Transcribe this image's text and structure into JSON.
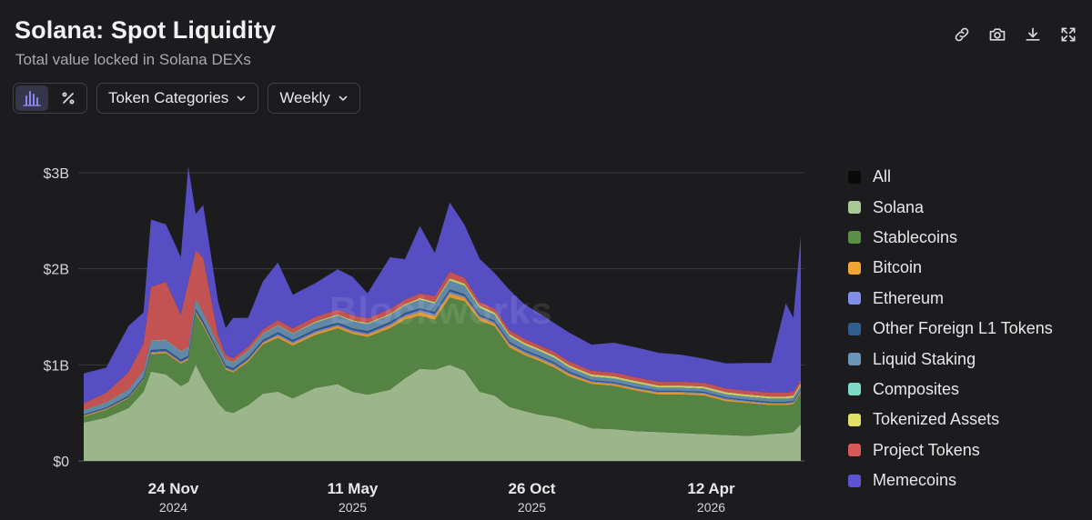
{
  "header": {
    "title": "Solana: Spot Liquidity",
    "subtitle": "Total value locked in Solana DEXs"
  },
  "toolbar": {
    "icons": [
      "link-icon",
      "camera-icon",
      "download-icon",
      "expand-icon"
    ]
  },
  "controls": {
    "view_toggle": [
      "bar-chart-icon",
      "percent-icon"
    ],
    "category_dropdown": "Token Categories",
    "interval_dropdown": "Weekly"
  },
  "watermark": "Blockworks",
  "colors": {
    "background": "#1c1c1e",
    "accent": "#7b74e6"
  },
  "chart_data": {
    "type": "area",
    "stacked": true,
    "title": "Solana: Spot Liquidity",
    "subtitle": "Total value locked in Solana DEXs",
    "ylim": [
      0,
      3000000000
    ],
    "y_ticks": [
      {
        "value": 0,
        "label": "$0"
      },
      {
        "value": 1000000000,
        "label": "$1B"
      },
      {
        "value": 2000000000,
        "label": "$2B"
      },
      {
        "value": 3000000000,
        "label": "$3B"
      }
    ],
    "x_range": [
      "2024-09-01",
      "2026-07-05"
    ],
    "x_ticks": [
      {
        "date": "2024-11-24",
        "day": "24 Nov",
        "year": "2024"
      },
      {
        "date": "2025-05-11",
        "day": "11 May",
        "year": "2025"
      },
      {
        "date": "2025-10-26",
        "day": "26 Oct",
        "year": "2025"
      },
      {
        "date": "2026-04-12",
        "day": "12 Apr",
        "year": "2026"
      }
    ],
    "legend_position": "right",
    "grid": true,
    "x": [
      "2024-09-01",
      "2024-09-22",
      "2024-10-13",
      "2024-10-27",
      "2024-11-03",
      "2024-11-17",
      "2024-12-01",
      "2024-12-08",
      "2024-12-15",
      "2024-12-22",
      "2025-01-05",
      "2025-01-12",
      "2025-01-19",
      "2025-02-02",
      "2025-02-16",
      "2025-03-02",
      "2025-03-16",
      "2025-04-06",
      "2025-04-27",
      "2025-05-11",
      "2025-05-25",
      "2025-06-15",
      "2025-06-29",
      "2025-07-13",
      "2025-07-27",
      "2025-08-10",
      "2025-08-24",
      "2025-09-07",
      "2025-09-21",
      "2025-10-05",
      "2025-10-19",
      "2025-11-02",
      "2025-11-16",
      "2025-11-30",
      "2025-12-21",
      "2026-01-11",
      "2026-02-01",
      "2026-02-22",
      "2026-03-15",
      "2026-04-05",
      "2026-04-26",
      "2026-05-17",
      "2026-06-07",
      "2026-06-21",
      "2026-06-28",
      "2026-07-05"
    ],
    "series": [
      {
        "name": "All",
        "color": "#0a0a0a",
        "values": [
          0,
          0,
          0,
          0,
          0,
          0,
          0,
          0,
          0,
          0,
          0,
          0,
          0,
          0,
          0,
          0,
          0,
          0,
          0,
          0,
          0,
          0,
          0,
          0,
          0,
          0,
          0,
          0,
          0,
          0,
          0,
          0,
          0,
          0,
          0,
          0,
          0,
          0,
          0,
          0,
          0,
          0,
          0,
          0,
          0,
          0
        ]
      },
      {
        "name": "Solana",
        "color": "#a8c896",
        "values": [
          400000000,
          450000000,
          550000000,
          720000000,
          930000000,
          900000000,
          780000000,
          820000000,
          1000000000,
          850000000,
          600000000,
          520000000,
          500000000,
          580000000,
          700000000,
          720000000,
          650000000,
          760000000,
          800000000,
          720000000,
          690000000,
          740000000,
          860000000,
          960000000,
          950000000,
          1000000000,
          940000000,
          720000000,
          680000000,
          560000000,
          520000000,
          480000000,
          460000000,
          420000000,
          340000000,
          330000000,
          310000000,
          300000000,
          290000000,
          280000000,
          270000000,
          260000000,
          280000000,
          290000000,
          300000000,
          380000000
        ]
      },
      {
        "name": "Stablecoins",
        "color": "#5b8f48",
        "values": [
          60000000,
          80000000,
          100000000,
          120000000,
          180000000,
          220000000,
          230000000,
          230000000,
          530000000,
          550000000,
          500000000,
          430000000,
          420000000,
          450000000,
          510000000,
          560000000,
          550000000,
          550000000,
          580000000,
          600000000,
          600000000,
          640000000,
          610000000,
          550000000,
          520000000,
          700000000,
          720000000,
          740000000,
          720000000,
          620000000,
          580000000,
          560000000,
          510000000,
          460000000,
          460000000,
          450000000,
          420000000,
          390000000,
          400000000,
          400000000,
          350000000,
          340000000,
          300000000,
          290000000,
          290000000,
          330000000
        ]
      },
      {
        "name": "Bitcoin",
        "color": "#f0a534",
        "values": [
          10000000,
          10000000,
          10000000,
          10000000,
          15000000,
          15000000,
          15000000,
          15000000,
          20000000,
          20000000,
          15000000,
          15000000,
          15000000,
          20000000,
          20000000,
          25000000,
          25000000,
          25000000,
          25000000,
          25000000,
          25000000,
          30000000,
          35000000,
          40000000,
          40000000,
          45000000,
          40000000,
          35000000,
          30000000,
          30000000,
          25000000,
          25000000,
          25000000,
          25000000,
          20000000,
          20000000,
          20000000,
          20000000,
          20000000,
          20000000,
          20000000,
          15000000,
          15000000,
          15000000,
          15000000,
          15000000
        ]
      },
      {
        "name": "Ethereum",
        "color": "#7f8fe8",
        "values": [
          5000000,
          5000000,
          5000000,
          5000000,
          10000000,
          10000000,
          10000000,
          10000000,
          10000000,
          10000000,
          10000000,
          10000000,
          10000000,
          10000000,
          10000000,
          15000000,
          15000000,
          15000000,
          15000000,
          15000000,
          15000000,
          15000000,
          15000000,
          20000000,
          20000000,
          20000000,
          15000000,
          15000000,
          15000000,
          15000000,
          15000000,
          15000000,
          15000000,
          10000000,
          10000000,
          10000000,
          10000000,
          10000000,
          10000000,
          10000000,
          10000000,
          10000000,
          10000000,
          10000000,
          10000000,
          10000000
        ]
      },
      {
        "name": "Other Foreign L1 Tokens",
        "color": "#2f5f8e",
        "values": [
          10000000,
          10000000,
          15000000,
          15000000,
          20000000,
          20000000,
          20000000,
          20000000,
          25000000,
          25000000,
          20000000,
          20000000,
          20000000,
          20000000,
          20000000,
          20000000,
          20000000,
          20000000,
          20000000,
          20000000,
          20000000,
          20000000,
          20000000,
          20000000,
          20000000,
          20000000,
          20000000,
          15000000,
          15000000,
          15000000,
          15000000,
          15000000,
          15000000,
          15000000,
          10000000,
          10000000,
          10000000,
          10000000,
          10000000,
          10000000,
          10000000,
          10000000,
          10000000,
          10000000,
          10000000,
          10000000
        ]
      },
      {
        "name": "Liquid Staking",
        "color": "#6a95b8",
        "values": [
          40000000,
          50000000,
          60000000,
          70000000,
          90000000,
          90000000,
          80000000,
          80000000,
          100000000,
          80000000,
          60000000,
          60000000,
          55000000,
          60000000,
          60000000,
          65000000,
          60000000,
          65000000,
          70000000,
          70000000,
          70000000,
          70000000,
          75000000,
          85000000,
          85000000,
          90000000,
          85000000,
          65000000,
          60000000,
          55000000,
          50000000,
          45000000,
          45000000,
          40000000,
          35000000,
          35000000,
          35000000,
          30000000,
          30000000,
          30000000,
          30000000,
          30000000,
          30000000,
          30000000,
          30000000,
          35000000
        ]
      },
      {
        "name": "Composites",
        "color": "#7dd9c8",
        "values": [
          3000000,
          3000000,
          3000000,
          3000000,
          5000000,
          5000000,
          5000000,
          5000000,
          5000000,
          5000000,
          5000000,
          5000000,
          5000000,
          5000000,
          5000000,
          5000000,
          5000000,
          5000000,
          5000000,
          5000000,
          5000000,
          5000000,
          5000000,
          5000000,
          5000000,
          5000000,
          5000000,
          5000000,
          5000000,
          5000000,
          5000000,
          5000000,
          5000000,
          5000000,
          5000000,
          5000000,
          5000000,
          5000000,
          5000000,
          5000000,
          5000000,
          5000000,
          5000000,
          5000000,
          5000000,
          5000000
        ]
      },
      {
        "name": "Tokenized Assets",
        "color": "#e3e06a",
        "values": [
          2000000,
          2000000,
          2000000,
          2000000,
          3000000,
          3000000,
          3000000,
          3000000,
          3000000,
          3000000,
          3000000,
          3000000,
          3000000,
          5000000,
          5000000,
          5000000,
          5000000,
          10000000,
          10000000,
          10000000,
          10000000,
          10000000,
          10000000,
          15000000,
          15000000,
          20000000,
          20000000,
          20000000,
          20000000,
          20000000,
          20000000,
          20000000,
          20000000,
          20000000,
          20000000,
          20000000,
          20000000,
          20000000,
          20000000,
          20000000,
          20000000,
          20000000,
          20000000,
          20000000,
          20000000,
          20000000
        ]
      },
      {
        "name": "Project Tokens",
        "color": "#d65a58",
        "values": [
          70000000,
          100000000,
          180000000,
          280000000,
          560000000,
          600000000,
          380000000,
          680000000,
          500000000,
          570000000,
          90000000,
          40000000,
          40000000,
          40000000,
          40000000,
          50000000,
          50000000,
          50000000,
          50000000,
          50000000,
          50000000,
          50000000,
          50000000,
          50000000,
          60000000,
          70000000,
          60000000,
          40000000,
          40000000,
          40000000,
          40000000,
          40000000,
          40000000,
          40000000,
          40000000,
          40000000,
          40000000,
          40000000,
          40000000,
          40000000,
          40000000,
          40000000,
          40000000,
          40000000,
          40000000,
          40000000
        ]
      },
      {
        "name": "Memecoins",
        "color": "#5d54d4",
        "values": [
          310000000,
          260000000,
          480000000,
          320000000,
          700000000,
          600000000,
          600000000,
          1200000000,
          380000000,
          550000000,
          350000000,
          280000000,
          420000000,
          300000000,
          500000000,
          600000000,
          350000000,
          350000000,
          420000000,
          400000000,
          260000000,
          540000000,
          420000000,
          700000000,
          450000000,
          720000000,
          550000000,
          450000000,
          370000000,
          420000000,
          360000000,
          330000000,
          300000000,
          300000000,
          270000000,
          310000000,
          310000000,
          300000000,
          280000000,
          250000000,
          260000000,
          290000000,
          310000000,
          930000000,
          770000000,
          1500000000
        ]
      }
    ]
  }
}
